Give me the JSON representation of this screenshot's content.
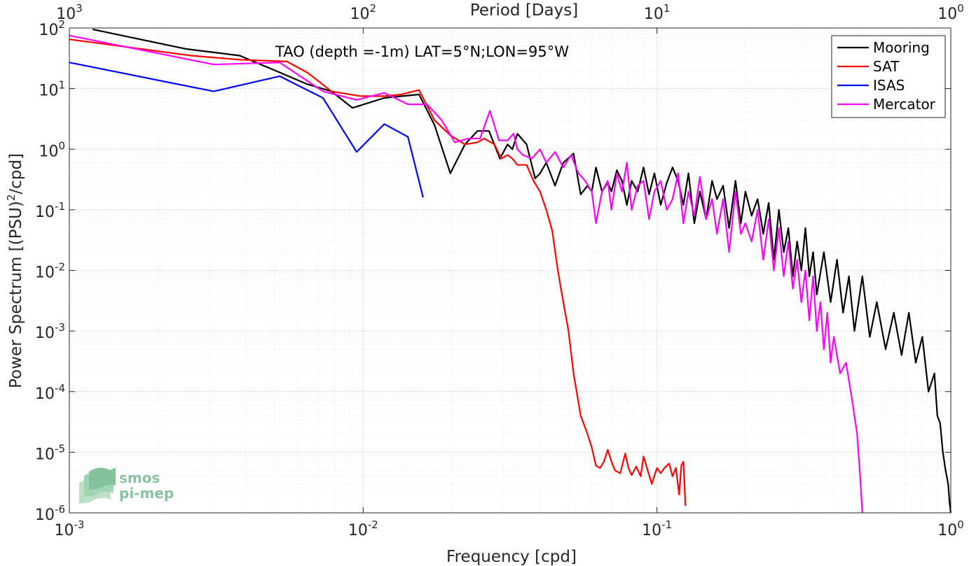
{
  "chart_data": {
    "type": "line",
    "title": "TAO (depth =-1m) LAT=5°N;LON=95°W",
    "xlabel": "Frequency [cpd]",
    "ylabel": "Power Spectrum [(PSU)",
    "ylabel_sup": "2",
    "ylabel_tail": "/cpd]",
    "top_xlabel": "Period [Days]",
    "x_scale": "log",
    "y_scale": "log",
    "xlim": [
      0.001,
      1
    ],
    "ylim": [
      1e-06,
      100
    ],
    "grid": true,
    "legend_position": "top-right",
    "x_ticks": [
      {
        "value": 0.001,
        "base": "10",
        "exp": "-3"
      },
      {
        "value": 0.01,
        "base": "10",
        "exp": "-2"
      },
      {
        "value": 0.1,
        "base": "10",
        "exp": "-1"
      },
      {
        "value": 1,
        "base": "10",
        "exp": "0"
      }
    ],
    "top_ticks": [
      {
        "value": 0.001,
        "base": "10",
        "exp": "3"
      },
      {
        "value": 0.01,
        "base": "10",
        "exp": "2"
      },
      {
        "value": 0.1,
        "base": "10",
        "exp": "1"
      },
      {
        "value": 1,
        "base": "10",
        "exp": "0"
      }
    ],
    "y_ticks": [
      {
        "value": 100,
        "base": "10",
        "exp": "2"
      },
      {
        "value": 10,
        "base": "10",
        "exp": "1"
      },
      {
        "value": 1,
        "base": "10",
        "exp": "0"
      },
      {
        "value": 0.1,
        "base": "10",
        "exp": "-1"
      },
      {
        "value": 0.01,
        "base": "10",
        "exp": "-2"
      },
      {
        "value": 0.001,
        "base": "10",
        "exp": "-3"
      },
      {
        "value": 0.0001,
        "base": "10",
        "exp": "-4"
      },
      {
        "value": 1e-05,
        "base": "10",
        "exp": "-5"
      },
      {
        "value": 1e-06,
        "base": "10",
        "exp": "-6"
      }
    ],
    "series": [
      {
        "name": "Mooring",
        "color": "#000000",
        "x": [
          0.0012,
          0.0025,
          0.0038,
          0.005,
          0.0064,
          0.0078,
          0.0092,
          0.0118,
          0.0155,
          0.0175,
          0.0198,
          0.0222,
          0.0245,
          0.0268,
          0.0292,
          0.031,
          0.0322,
          0.0335,
          0.036,
          0.0385,
          0.04,
          0.042,
          0.045,
          0.048,
          0.052,
          0.055,
          0.058,
          0.06,
          0.062,
          0.065,
          0.068,
          0.07,
          0.073,
          0.076,
          0.079,
          0.082,
          0.086,
          0.09,
          0.094,
          0.098,
          0.103,
          0.108,
          0.113,
          0.118,
          0.123,
          0.128,
          0.134,
          0.14,
          0.147,
          0.154,
          0.16,
          0.168,
          0.176,
          0.185,
          0.193,
          0.2,
          0.21,
          0.22,
          0.23,
          0.24,
          0.25,
          0.26,
          0.27,
          0.28,
          0.29,
          0.3,
          0.31,
          0.32,
          0.33,
          0.34,
          0.35,
          0.37,
          0.39,
          0.41,
          0.43,
          0.45,
          0.47,
          0.5,
          0.53,
          0.56,
          0.6,
          0.64,
          0.68,
          0.72,
          0.76,
          0.8,
          0.84,
          0.88,
          0.9,
          0.92,
          0.94,
          0.96,
          0.98,
          0.99,
          1.0
        ],
        "y": [
          95,
          45,
          35,
          20,
          12,
          9,
          4.8,
          7,
          8,
          2.5,
          0.4,
          1.2,
          2,
          2,
          0.7,
          1.2,
          1,
          1.8,
          1.2,
          0.33,
          0.4,
          0.6,
          0.25,
          0.6,
          0.85,
          0.18,
          0.25,
          0.2,
          0.5,
          0.2,
          0.28,
          0.2,
          0.45,
          0.3,
          0.12,
          0.3,
          0.2,
          0.5,
          0.18,
          0.4,
          0.12,
          0.28,
          0.5,
          0.3,
          0.12,
          0.4,
          0.06,
          0.2,
          0.07,
          0.3,
          0.15,
          0.25,
          0.05,
          0.3,
          0.06,
          0.2,
          0.08,
          0.15,
          0.04,
          0.13,
          0.015,
          0.1,
          0.02,
          0.05,
          0.008,
          0.03,
          0.01,
          0.05,
          0.008,
          0.02,
          0.004,
          0.02,
          0.003,
          0.015,
          0.002,
          0.008,
          0.001,
          0.008,
          0.0008,
          0.003,
          0.0005,
          0.002,
          0.0004,
          0.002,
          0.0003,
          0.0008,
          0.0001,
          0.0002,
          4e-05,
          3e-05,
          1e-05,
          5e-06,
          3e-06,
          1.5e-06,
          1e-06
        ]
      },
      {
        "name": "SAT",
        "color": "#ff0000",
        "x": [
          0.001,
          0.0026,
          0.0038,
          0.0055,
          0.0065,
          0.0078,
          0.0098,
          0.0118,
          0.0135,
          0.0155,
          0.0175,
          0.0198,
          0.0222,
          0.0245,
          0.0258,
          0.028,
          0.0295,
          0.031,
          0.0322,
          0.0335,
          0.036,
          0.038,
          0.04,
          0.042,
          0.044,
          0.046,
          0.048,
          0.05,
          0.052,
          0.055,
          0.058,
          0.06,
          0.062,
          0.064,
          0.066,
          0.068,
          0.07,
          0.072,
          0.075,
          0.078,
          0.08,
          0.082,
          0.085,
          0.088,
          0.09,
          0.093,
          0.096,
          0.1,
          0.103,
          0.106,
          0.11,
          0.113,
          0.116,
          0.119,
          0.121,
          0.123,
          0.125
        ],
        "y": [
          65,
          35,
          30,
          28,
          18,
          9,
          7.5,
          7.5,
          8,
          9.5,
          3,
          1.7,
          1.2,
          1.3,
          1.5,
          1.2,
          0.7,
          0.8,
          0.7,
          0.55,
          0.55,
          0.3,
          0.2,
          0.1,
          0.045,
          0.01,
          0.003,
          0.001,
          0.0002,
          4e-05,
          2e-05,
          1.2e-05,
          6e-06,
          5.5e-06,
          7e-06,
          1.1e-05,
          7e-06,
          5e-06,
          4.5e-06,
          9.5e-06,
          5.5e-06,
          4.2e-06,
          5.8e-06,
          4e-06,
          8.5e-06,
          5e-06,
          3e-06,
          5.5e-06,
          4.5e-06,
          5.5e-06,
          6.5e-06,
          4e-06,
          5.5e-06,
          2e-06,
          6e-06,
          7e-06,
          1.3e-06
        ]
      },
      {
        "name": "ISAS",
        "color": "#0000ff",
        "x": [
          0.001,
          0.0031,
          0.0052,
          0.0073,
          0.0095,
          0.0118,
          0.0142,
          0.016
        ],
        "y": [
          27,
          9,
          16,
          7,
          0.9,
          2.6,
          1.6,
          0.16
        ]
      },
      {
        "name": "Mercator",
        "color": "#ff00ff",
        "x": [
          0.001,
          0.0031,
          0.0052,
          0.0073,
          0.0095,
          0.0118,
          0.0142,
          0.0165,
          0.0185,
          0.0205,
          0.0228,
          0.025,
          0.027,
          0.029,
          0.031,
          0.0325,
          0.0335,
          0.035,
          0.0375,
          0.04,
          0.042,
          0.045,
          0.048,
          0.051,
          0.054,
          0.057,
          0.06,
          0.062,
          0.065,
          0.068,
          0.07,
          0.073,
          0.076,
          0.079,
          0.082,
          0.086,
          0.09,
          0.094,
          0.098,
          0.103,
          0.108,
          0.113,
          0.118,
          0.123,
          0.128,
          0.134,
          0.14,
          0.147,
          0.154,
          0.16,
          0.168,
          0.176,
          0.185,
          0.193,
          0.2,
          0.21,
          0.22,
          0.23,
          0.24,
          0.25,
          0.26,
          0.27,
          0.28,
          0.29,
          0.3,
          0.31,
          0.32,
          0.33,
          0.34,
          0.35,
          0.36,
          0.37,
          0.38,
          0.39,
          0.4,
          0.42,
          0.44,
          0.46,
          0.48,
          0.49,
          0.5
        ],
        "y": [
          75,
          25,
          27,
          9,
          6.5,
          8.5,
          5.5,
          5.5,
          3,
          1.3,
          1.5,
          1.5,
          4.3,
          1.4,
          1.4,
          1.8,
          1,
          0.8,
          0.7,
          1,
          0.6,
          0.9,
          0.5,
          0.8,
          0.4,
          0.3,
          0.2,
          0.06,
          0.2,
          0.3,
          0.1,
          0.4,
          0.2,
          0.6,
          0.1,
          0.25,
          0.3,
          0.07,
          0.2,
          0.3,
          0.1,
          0.15,
          0.4,
          0.06,
          0.2,
          0.08,
          0.35,
          0.07,
          0.15,
          0.04,
          0.15,
          0.02,
          0.2,
          0.04,
          0.06,
          0.03,
          0.1,
          0.015,
          0.07,
          0.01,
          0.05,
          0.008,
          0.03,
          0.005,
          0.015,
          0.003,
          0.01,
          0.0015,
          0.008,
          0.001,
          0.003,
          0.0005,
          0.002,
          0.0003,
          0.0008,
          0.0002,
          0.0003,
          8e-05,
          2e-05,
          5e-06,
          1e-06
        ]
      }
    ]
  },
  "watermark": {
    "line1": "smos",
    "line2": "pi-mep",
    "color": "#6bb58a"
  }
}
